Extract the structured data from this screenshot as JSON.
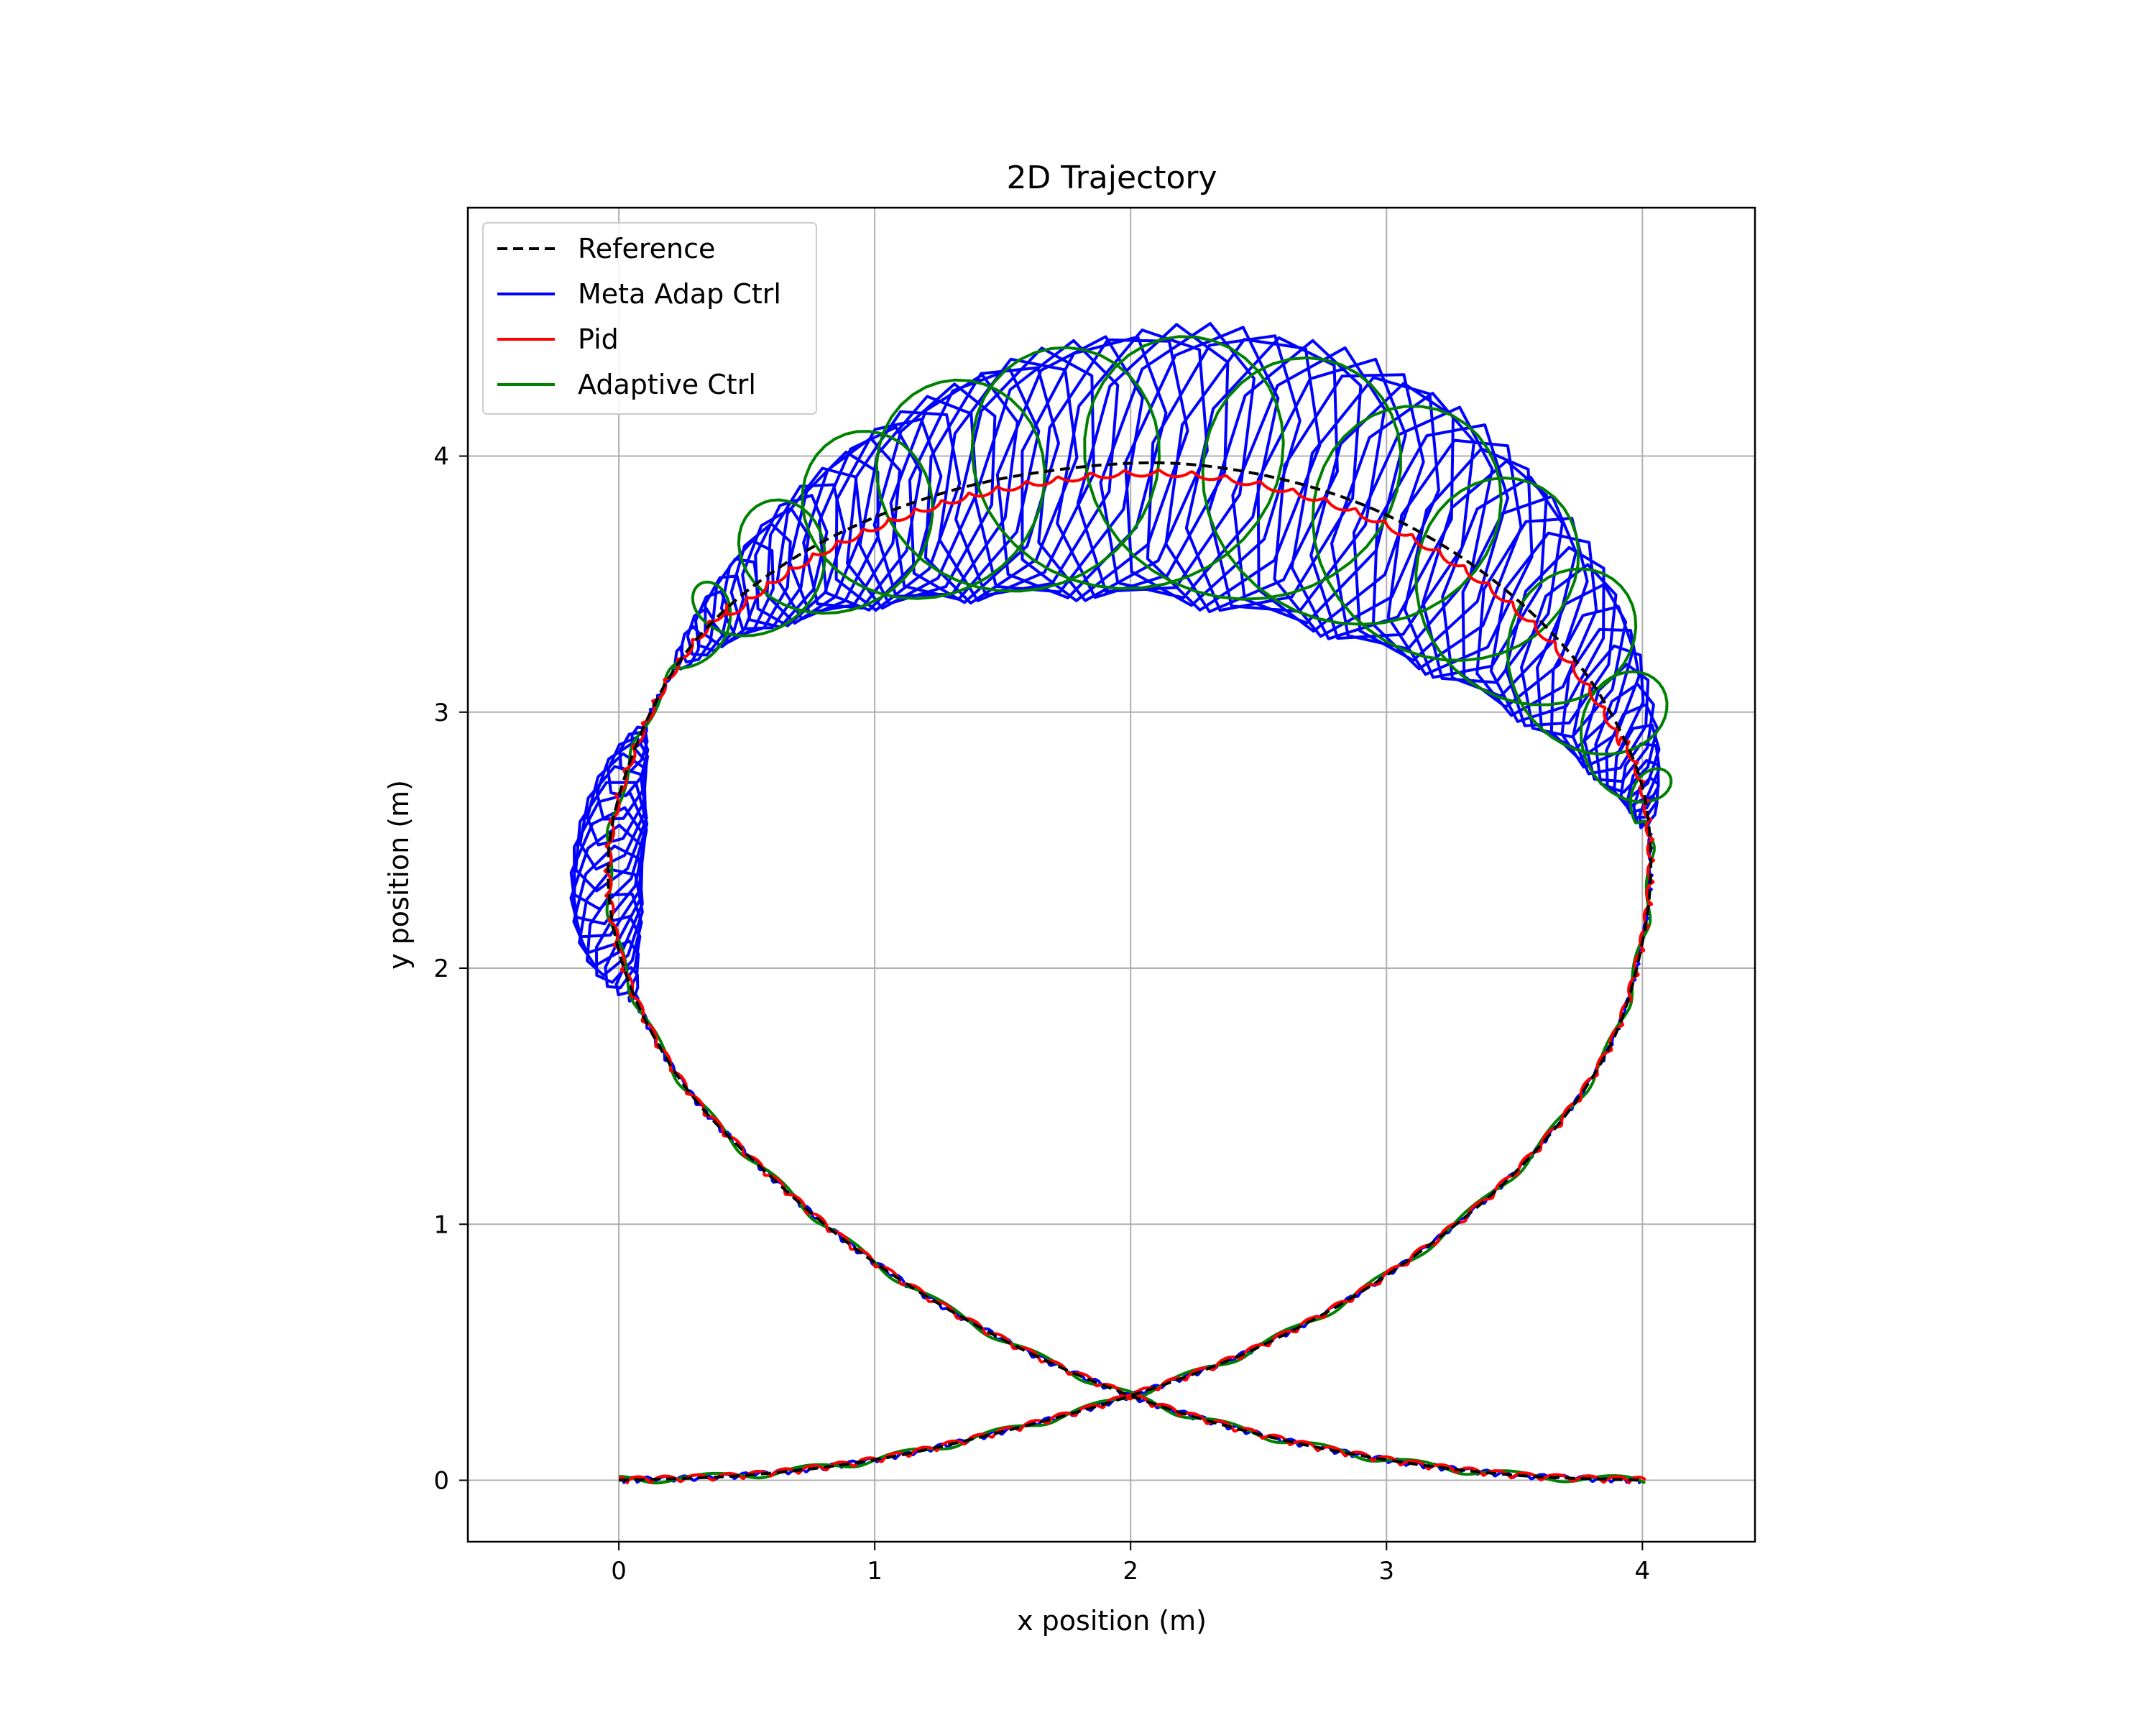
{
  "chart_data": {
    "type": "line",
    "title": "2D Trajectory",
    "xlabel": "x position (m)",
    "ylabel": "y position (m)",
    "xlim": [
      -0.59,
      4.44
    ],
    "ylim": [
      -0.24,
      4.97
    ],
    "xticks": [
      0,
      1,
      2,
      3,
      4
    ],
    "yticks": [
      0,
      1,
      2,
      3,
      4
    ],
    "grid": true,
    "legend": "top-left",
    "series": [
      {
        "name": "Reference",
        "color": "#000000",
        "style": "dashed"
      },
      {
        "name": "Meta Adap Ctrl",
        "color": "#0000ff",
        "style": "solid"
      },
      {
        "name": "Pid",
        "color": "#ff0000",
        "style": "solid"
      },
      {
        "name": "Adaptive Ctrl",
        "color": "#008000",
        "style": "solid"
      }
    ]
  }
}
